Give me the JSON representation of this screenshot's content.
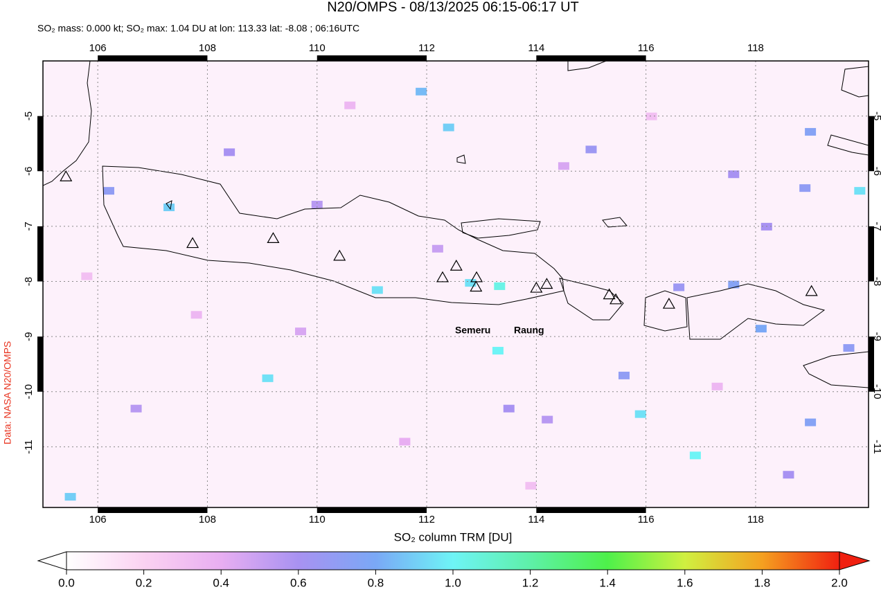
{
  "header": {
    "title": "N20/OMPS - 08/13/2025 06:15-06:17 UT",
    "subtitle": "SO₂ mass: 0.000 kt; SO₂ max: 1.04 DU at lon: 113.33 lat: -8.08 ; 06:16UTC",
    "credit": "Data: NASA N20/OMPS"
  },
  "map": {
    "xlim": [
      105.0,
      120.06
    ],
    "ylim": [
      -12.1,
      -4.0
    ],
    "xticks": [
      106,
      108,
      110,
      112,
      114,
      116,
      118
    ],
    "yticks": [
      -5,
      -6,
      -7,
      -8,
      -9,
      -10,
      -11
    ],
    "volcanoes": [
      {
        "lon": 105.42,
        "lat": -6.1
      },
      {
        "lon": 107.73,
        "lat": -7.31
      },
      {
        "lon": 109.2,
        "lat": -7.22
      },
      {
        "lon": 110.41,
        "lat": -7.54
      },
      {
        "lon": 112.29,
        "lat": -7.93
      },
      {
        "lon": 112.54,
        "lat": -7.72
      },
      {
        "lon": 112.91,
        "lat": -7.93
      },
      {
        "lon": 112.9,
        "lat": -8.1
      },
      {
        "lon": 114.0,
        "lat": -8.12
      },
      {
        "lon": 114.19,
        "lat": -8.05
      },
      {
        "lon": 115.33,
        "lat": -8.24
      },
      {
        "lon": 115.45,
        "lat": -8.33
      },
      {
        "lon": 116.42,
        "lat": -8.41
      },
      {
        "lon": 119.02,
        "lat": -8.18
      }
    ],
    "volcano_labels": [
      "Semeru",
      "Raung"
    ],
    "pixels": [
      {
        "lon": 113.33,
        "lat": -8.08,
        "value": 1.04
      },
      {
        "lon": 112.8,
        "lat": -8.02,
        "value": 0.95
      },
      {
        "lon": 111.9,
        "lat": -4.55,
        "value": 0.85
      },
      {
        "lon": 112.4,
        "lat": -5.2,
        "value": 0.9
      },
      {
        "lon": 113.3,
        "lat": -9.25,
        "value": 1.0
      },
      {
        "lon": 116.9,
        "lat": -11.15,
        "value": 1.0
      },
      {
        "lon": 115.9,
        "lat": -10.4,
        "value": 0.95
      },
      {
        "lon": 119.9,
        "lat": -6.35,
        "value": 0.95
      },
      {
        "lon": 107.3,
        "lat": -6.65,
        "value": 0.9
      },
      {
        "lon": 111.1,
        "lat": -8.15,
        "value": 0.95
      },
      {
        "lon": 109.1,
        "lat": -9.75,
        "value": 0.95
      },
      {
        "lon": 105.5,
        "lat": -11.9,
        "value": 0.9
      },
      {
        "lon": 118.1,
        "lat": -8.85,
        "value": 0.8
      },
      {
        "lon": 119.0,
        "lat": -5.28,
        "value": 0.75
      },
      {
        "lon": 118.9,
        "lat": -6.3,
        "value": 0.7
      },
      {
        "lon": 117.6,
        "lat": -8.05,
        "value": 0.75
      },
      {
        "lon": 119.7,
        "lat": -9.2,
        "value": 0.7
      },
      {
        "lon": 119.0,
        "lat": -10.55,
        "value": 0.75
      },
      {
        "lon": 115.0,
        "lat": -5.6,
        "value": 0.65
      },
      {
        "lon": 117.6,
        "lat": -6.05,
        "value": 0.6
      },
      {
        "lon": 118.2,
        "lat": -7.0,
        "value": 0.6
      },
      {
        "lon": 108.4,
        "lat": -5.65,
        "value": 0.6
      },
      {
        "lon": 106.2,
        "lat": -6.35,
        "value": 0.7
      },
      {
        "lon": 113.5,
        "lat": -10.3,
        "value": 0.6
      },
      {
        "lon": 115.6,
        "lat": -9.7,
        "value": 0.7
      },
      {
        "lon": 114.2,
        "lat": -10.5,
        "value": 0.55
      },
      {
        "lon": 110.0,
        "lat": -6.6,
        "value": 0.55
      },
      {
        "lon": 106.7,
        "lat": -10.3,
        "value": 0.55
      },
      {
        "lon": 118.6,
        "lat": -11.5,
        "value": 0.6
      },
      {
        "lon": 116.6,
        "lat": -8.1,
        "value": 0.65
      },
      {
        "lon": 112.2,
        "lat": -7.4,
        "value": 0.5
      },
      {
        "lon": 114.5,
        "lat": -5.9,
        "value": 0.45
      },
      {
        "lon": 109.7,
        "lat": -8.9,
        "value": 0.45
      },
      {
        "lon": 111.6,
        "lat": -10.9,
        "value": 0.4
      },
      {
        "lon": 107.8,
        "lat": -8.6,
        "value": 0.35
      },
      {
        "lon": 117.3,
        "lat": -9.9,
        "value": 0.35
      },
      {
        "lon": 110.6,
        "lat": -4.8,
        "value": 0.35
      },
      {
        "lon": 105.8,
        "lat": -7.9,
        "value": 0.3
      },
      {
        "lon": 113.9,
        "lat": -11.7,
        "value": 0.3
      },
      {
        "lon": 116.1,
        "lat": -5.0,
        "value": 0.3
      }
    ]
  },
  "colorbar": {
    "label": "SO₂ column TRM [DU]",
    "lim": [
      0,
      2
    ],
    "ticks": [
      {
        "value": 0,
        "label": "0.0"
      },
      {
        "value": 0.2,
        "label": "0.2"
      },
      {
        "value": 0.4,
        "label": "0.4"
      },
      {
        "value": 0.6,
        "label": "0.6"
      },
      {
        "value": 0.8,
        "label": "0.8"
      },
      {
        "value": 1,
        "label": "1.0"
      },
      {
        "value": 1.2,
        "label": "1.2"
      },
      {
        "value": 1.4,
        "label": "1.4"
      },
      {
        "value": 1.6,
        "label": "1.6"
      },
      {
        "value": 1.8,
        "label": "1.8"
      },
      {
        "value": 2,
        "label": "2.0"
      }
    ]
  }
}
